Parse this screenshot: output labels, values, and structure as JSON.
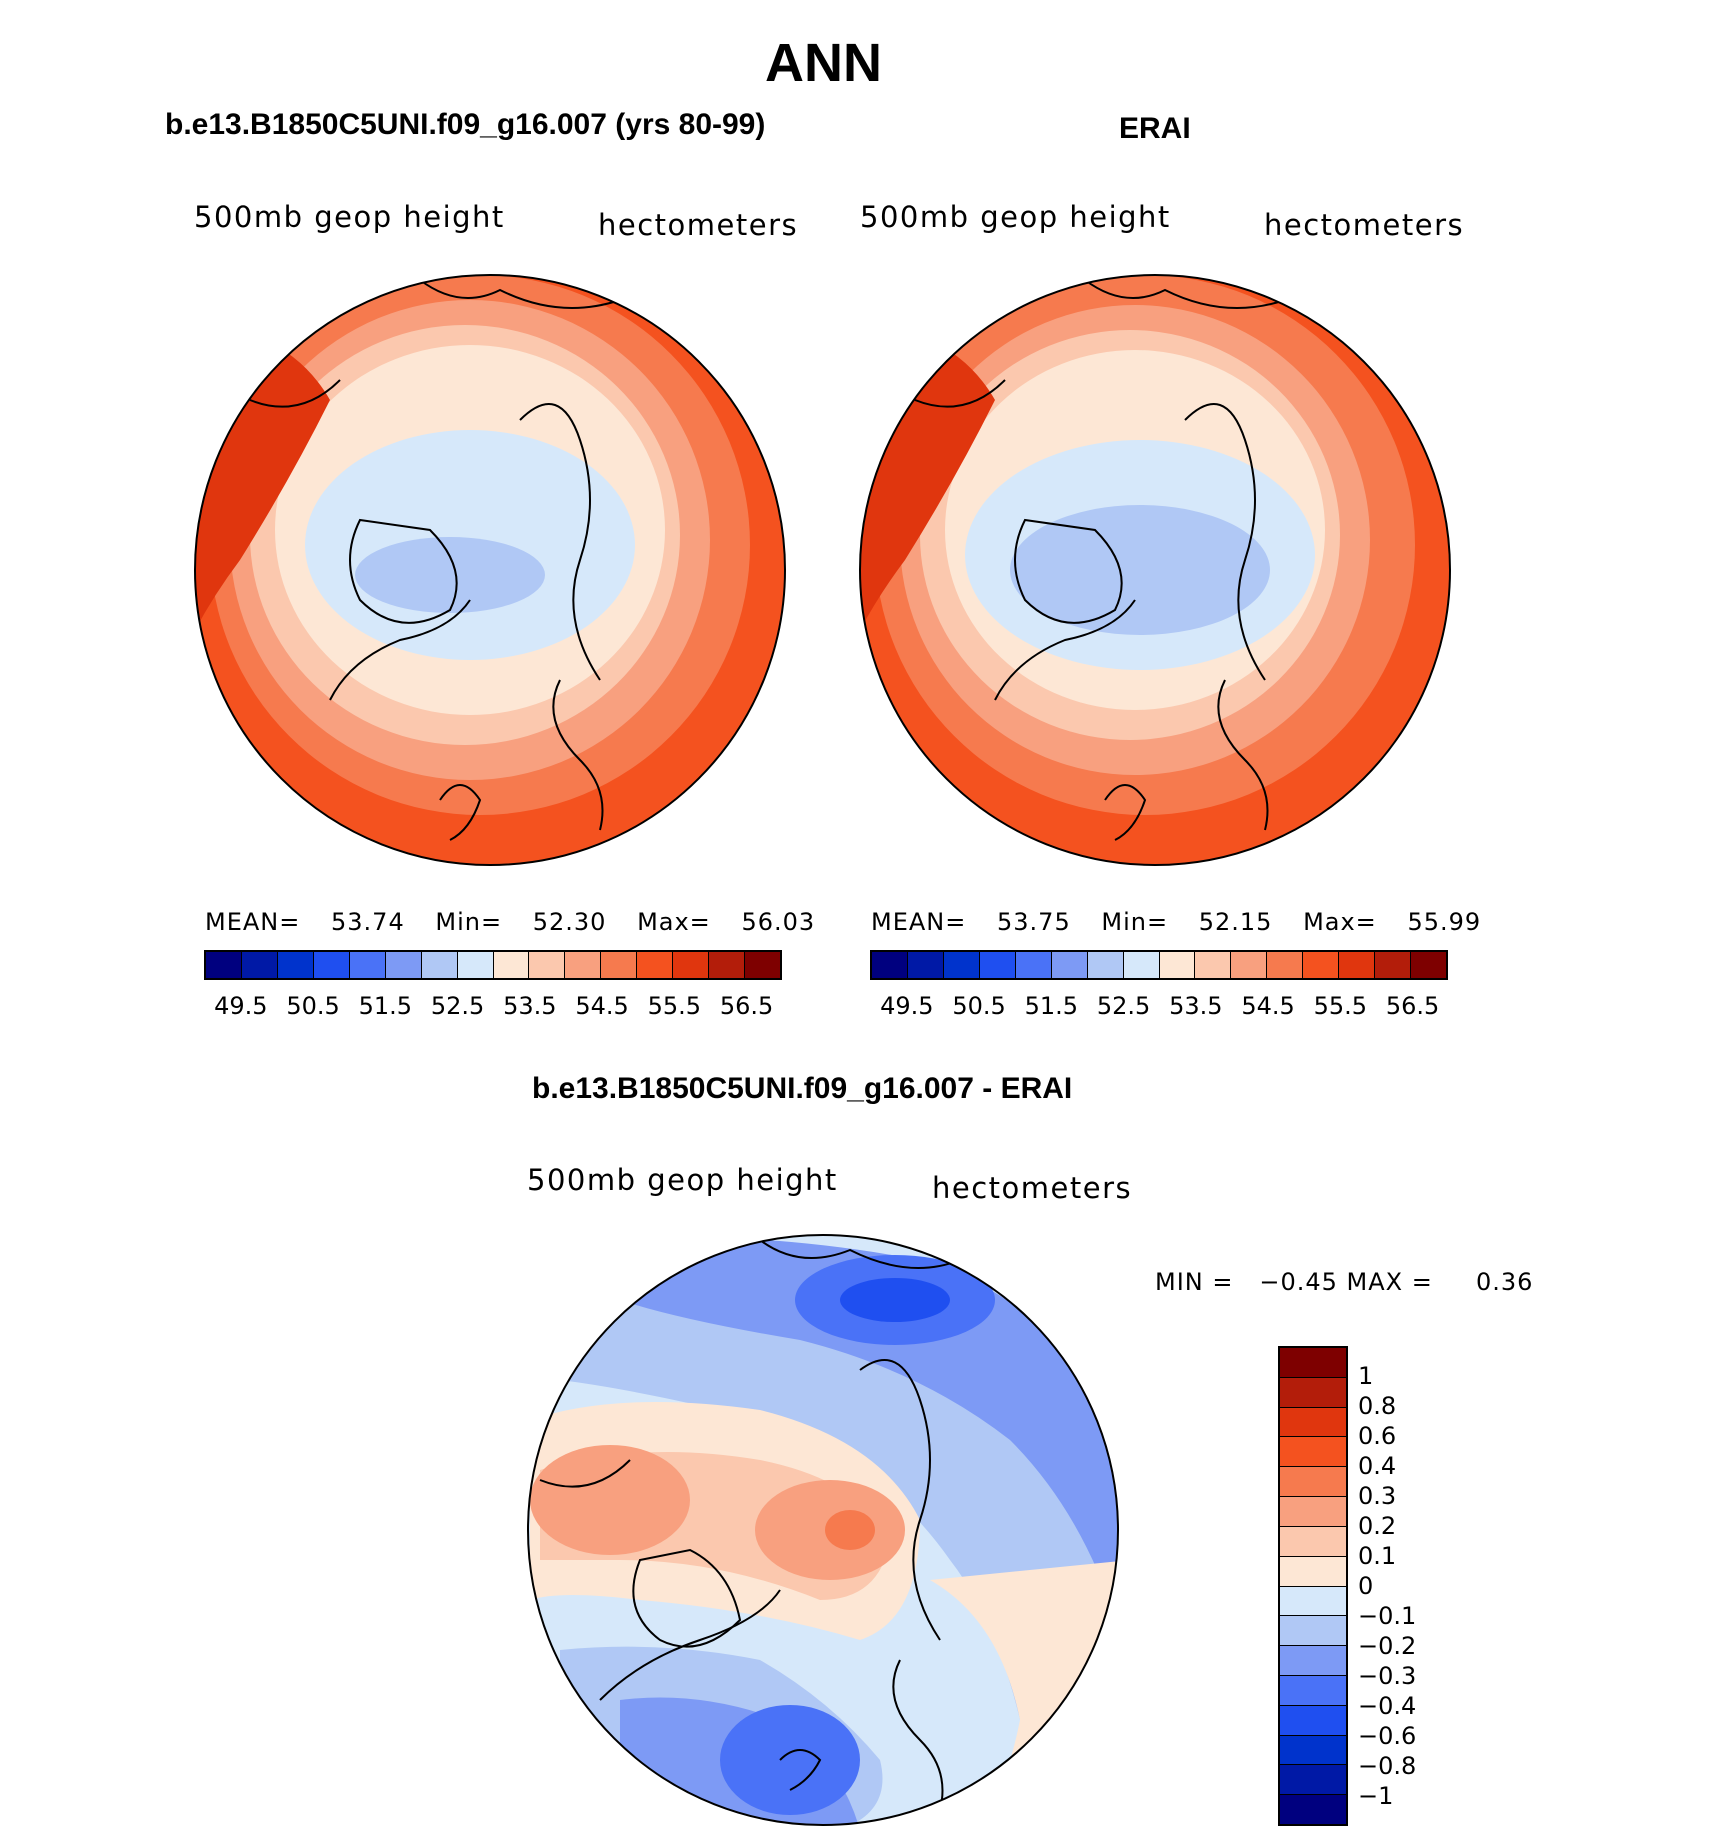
{
  "page": {
    "title": "ANN"
  },
  "panels": {
    "model": {
      "title": "b.e13.B1850C5UNI.f09_g16.007 (yrs 80-99)",
      "variable": "500mb geop height",
      "units": "hectometers",
      "stats": {
        "mean_label": "MEAN=",
        "mean": "53.74",
        "min_label": "Min=",
        "min": "52.30",
        "max_label": "Max=",
        "max": "56.03"
      }
    },
    "obs": {
      "title": "ERAI",
      "variable": "500mb geop height",
      "units": "hectometers",
      "stats": {
        "mean_label": "MEAN=",
        "mean": "53.75",
        "min_label": "Min=",
        "min": "52.15",
        "max_label": "Max=",
        "max": "55.99"
      }
    },
    "diff": {
      "title": "b.e13.B1850C5UNI.f09_g16.007 - ERAI",
      "variable": "500mb geop height",
      "units": "hectometers",
      "minmax": "MIN =   −0.45 MAX =     0.36"
    }
  },
  "colorbars": {
    "abs": {
      "colors": [
        "#00007f",
        "#0019a6",
        "#0033cc",
        "#1f4ff0",
        "#4a72f7",
        "#7d9af5",
        "#b0c8f5",
        "#d6e8fa",
        "#fde7d5",
        "#fbc8ae",
        "#f8a07f",
        "#f67a4e",
        "#f4521f",
        "#e0360e",
        "#b31d0a",
        "#7e0000"
      ],
      "labels": [
        "49.5",
        "50.5",
        "51.5",
        "52.5",
        "53.5",
        "54.5",
        "55.5",
        "56.5"
      ]
    },
    "diff": {
      "colors": [
        "#7e0000",
        "#b31d0a",
        "#e0360e",
        "#f4521f",
        "#f67a4e",
        "#f8a07f",
        "#fbc8ae",
        "#fde7d5",
        "#d6e8fa",
        "#b0c8f5",
        "#7d9af5",
        "#4a72f7",
        "#1f4ff0",
        "#0033cc",
        "#0019a6",
        "#00007f"
      ],
      "labels": [
        "1",
        "0.8",
        "0.6",
        "0.4",
        "0.3",
        "0.2",
        "0.1",
        "0",
        "−0.1",
        "−0.2",
        "−0.3",
        "−0.4",
        "−0.6",
        "−0.8",
        "−1"
      ]
    }
  }
}
